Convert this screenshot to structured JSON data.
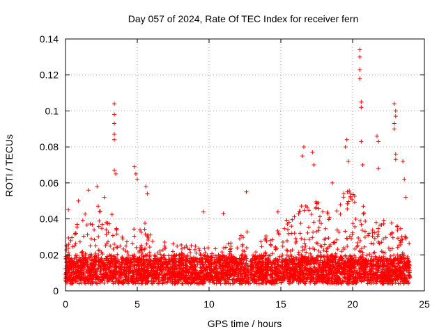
{
  "chart_data": {
    "type": "scatter",
    "title": "Day 057 of 2024, Rate Of TEC Index for receiver fern",
    "xlabel": "GPS time / hours",
    "ylabel": "ROTI / TECUs",
    "xlim": [
      0,
      25
    ],
    "ylim": [
      0,
      0.14
    ],
    "xticks": [
      0,
      5,
      10,
      15,
      20,
      25
    ],
    "xtick_labels": [
      "0",
      "5",
      "10",
      "15",
      "20",
      "25"
    ],
    "yticks": [
      0,
      0.02,
      0.04,
      0.06,
      0.08,
      0.1,
      0.12,
      0.14
    ],
    "ytick_labels": [
      "0",
      "0.02",
      "0.04",
      "0.06",
      "0.08",
      "0.1",
      "0.12",
      "0.14"
    ],
    "grid": true,
    "marker": "plus",
    "series_color": "#ff0000",
    "series": [
      {
        "name": "ROTI",
        "notable_points": [
          [
            0.2,
            0.045
          ],
          [
            0.9,
            0.05
          ],
          [
            1.6,
            0.056
          ],
          [
            2.2,
            0.058
          ],
          [
            2.7,
            0.052
          ],
          [
            3.4,
            0.104
          ],
          [
            3.4,
            0.098
          ],
          [
            3.4,
            0.093
          ],
          [
            3.4,
            0.087
          ],
          [
            3.4,
            0.084
          ],
          [
            3.4,
            0.067
          ],
          [
            3.5,
            0.065
          ],
          [
            4.8,
            0.069
          ],
          [
            4.9,
            0.065
          ],
          [
            5.0,
            0.062
          ],
          [
            5.6,
            0.058
          ],
          [
            5.7,
            0.054
          ],
          [
            9.6,
            0.044
          ],
          [
            11.0,
            0.043
          ],
          [
            12.6,
            0.055
          ],
          [
            14.8,
            0.044
          ],
          [
            16.6,
            0.08
          ],
          [
            16.5,
            0.075
          ],
          [
            17.2,
            0.077
          ],
          [
            17.3,
            0.07
          ],
          [
            18.6,
            0.06
          ],
          [
            19.6,
            0.084
          ],
          [
            19.5,
            0.08
          ],
          [
            19.7,
            0.072
          ],
          [
            20.5,
            0.134
          ],
          [
            20.5,
            0.13
          ],
          [
            20.5,
            0.123
          ],
          [
            20.5,
            0.118
          ],
          [
            20.6,
            0.105
          ],
          [
            20.6,
            0.102
          ],
          [
            20.6,
            0.083
          ],
          [
            20.7,
            0.07
          ],
          [
            21.7,
            0.086
          ],
          [
            21.8,
            0.083
          ],
          [
            21.8,
            0.068
          ],
          [
            22.9,
            0.104
          ],
          [
            23.0,
            0.1
          ],
          [
            23.0,
            0.097
          ],
          [
            22.9,
            0.093
          ],
          [
            22.9,
            0.09
          ],
          [
            23.0,
            0.076
          ],
          [
            23.0,
            0.073
          ],
          [
            23.5,
            0.072
          ],
          [
            23.6,
            0.062
          ],
          [
            23.7,
            0.052
          ]
        ]
      }
    ],
    "activity_profile": [
      [
        0,
        0.03
      ],
      [
        0.5,
        0.035
      ],
      [
        1,
        0.04
      ],
      [
        1.5,
        0.045
      ],
      [
        2,
        0.048
      ],
      [
        2.5,
        0.05
      ],
      [
        3,
        0.045
      ],
      [
        3.5,
        0.04
      ],
      [
        4,
        0.03
      ],
      [
        4.5,
        0.032
      ],
      [
        5,
        0.038
      ],
      [
        5.5,
        0.04
      ],
      [
        6,
        0.03
      ],
      [
        7,
        0.028
      ],
      [
        8,
        0.026
      ],
      [
        9,
        0.025
      ],
      [
        10,
        0.024
      ],
      [
        11,
        0.026
      ],
      [
        12,
        0.028
      ],
      [
        12.5,
        0.035
      ],
      [
        13,
        0.028
      ],
      [
        14,
        0.032
      ],
      [
        15,
        0.036
      ],
      [
        16,
        0.045
      ],
      [
        16.5,
        0.055
      ],
      [
        17,
        0.058
      ],
      [
        17.5,
        0.055
      ],
      [
        18,
        0.045
      ],
      [
        18.5,
        0.048
      ],
      [
        19,
        0.05
      ],
      [
        19.5,
        0.058
      ],
      [
        20,
        0.055
      ],
      [
        20.5,
        0.05
      ],
      [
        21,
        0.045
      ],
      [
        21.5,
        0.042
      ],
      [
        22,
        0.04
      ],
      [
        22.5,
        0.04
      ],
      [
        23,
        0.042
      ],
      [
        23.5,
        0.035
      ],
      [
        24,
        0.03
      ]
    ],
    "gaps": [
      [
        12.75,
        12.85
      ]
    ],
    "x_end": 24
  }
}
